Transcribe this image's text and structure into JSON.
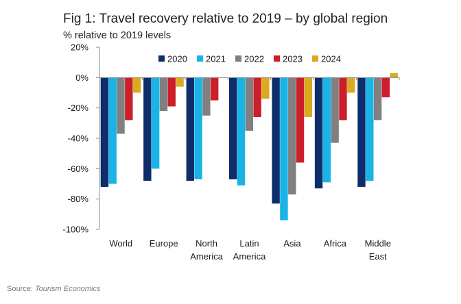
{
  "title": "Fig 1: Travel recovery relative to 2019 – by global region",
  "source": {
    "prefix": "Source: ",
    "name": "Tourism Economics"
  },
  "chart_data": {
    "type": "bar",
    "title": "Fig 1: Travel recovery relative to 2019 – by global region",
    "ylabel": "% relative to 2019 levels",
    "xlabel": "",
    "ylim": [
      -100,
      20
    ],
    "yticks": [
      20,
      0,
      -20,
      -40,
      -60,
      -80,
      -100
    ],
    "ytick_labels": [
      "20%",
      "0%",
      "-20%",
      "-40%",
      "-60%",
      "-80%",
      "-100%"
    ],
    "grid": false,
    "legend_position": "top",
    "categories": [
      [
        "World"
      ],
      [
        "Europe"
      ],
      [
        "North",
        "America"
      ],
      [
        "Latin",
        "America"
      ],
      [
        "Asia"
      ],
      [
        "Africa"
      ],
      [
        "Middle",
        "East"
      ]
    ],
    "series": [
      {
        "name": "2020",
        "color": "#0d2d6b",
        "values": [
          -72,
          -68,
          -68,
          -67,
          -83,
          -73,
          -72
        ]
      },
      {
        "name": "2021",
        "color": "#19b3e6",
        "values": [
          -70,
          -60,
          -67,
          -71,
          -94,
          -69,
          -68
        ]
      },
      {
        "name": "2022",
        "color": "#808080",
        "values": [
          -37,
          -22,
          -25,
          -35,
          -77,
          -43,
          -28
        ]
      },
      {
        "name": "2023",
        "color": "#cc1f2b",
        "values": [
          -28,
          -19,
          -15,
          -26,
          -56,
          -28,
          -13
        ]
      },
      {
        "name": "2024",
        "color": "#d9aa22",
        "values": [
          -10,
          -6,
          null,
          -14,
          -26,
          -10,
          3
        ]
      }
    ]
  }
}
